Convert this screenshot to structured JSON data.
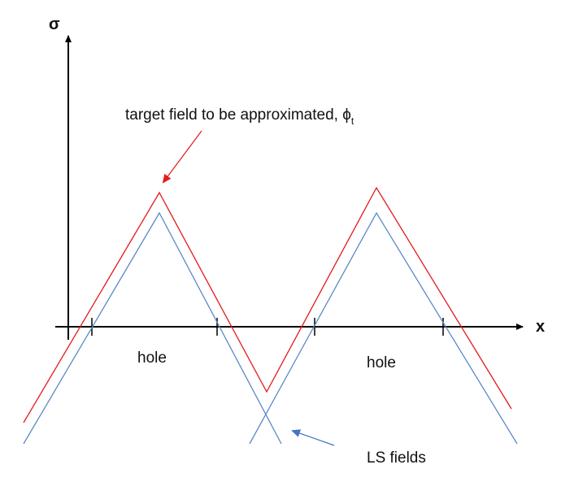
{
  "axes": {
    "y_label": "σ",
    "x_label": "x"
  },
  "annotations": {
    "target_prefix": "target field to be approximated, ",
    "target_symbol": "ϕ",
    "target_subscript": "t",
    "ls_fields": "LS fields",
    "hole_left": "hole",
    "hole_right": "hole"
  },
  "colors": {
    "target_field": "#e31a1c",
    "ls_fields": "#5b8ac6",
    "axes": "#000000",
    "arrow_target": "#e31a1c",
    "arrow_ls": "#4472c4"
  }
}
